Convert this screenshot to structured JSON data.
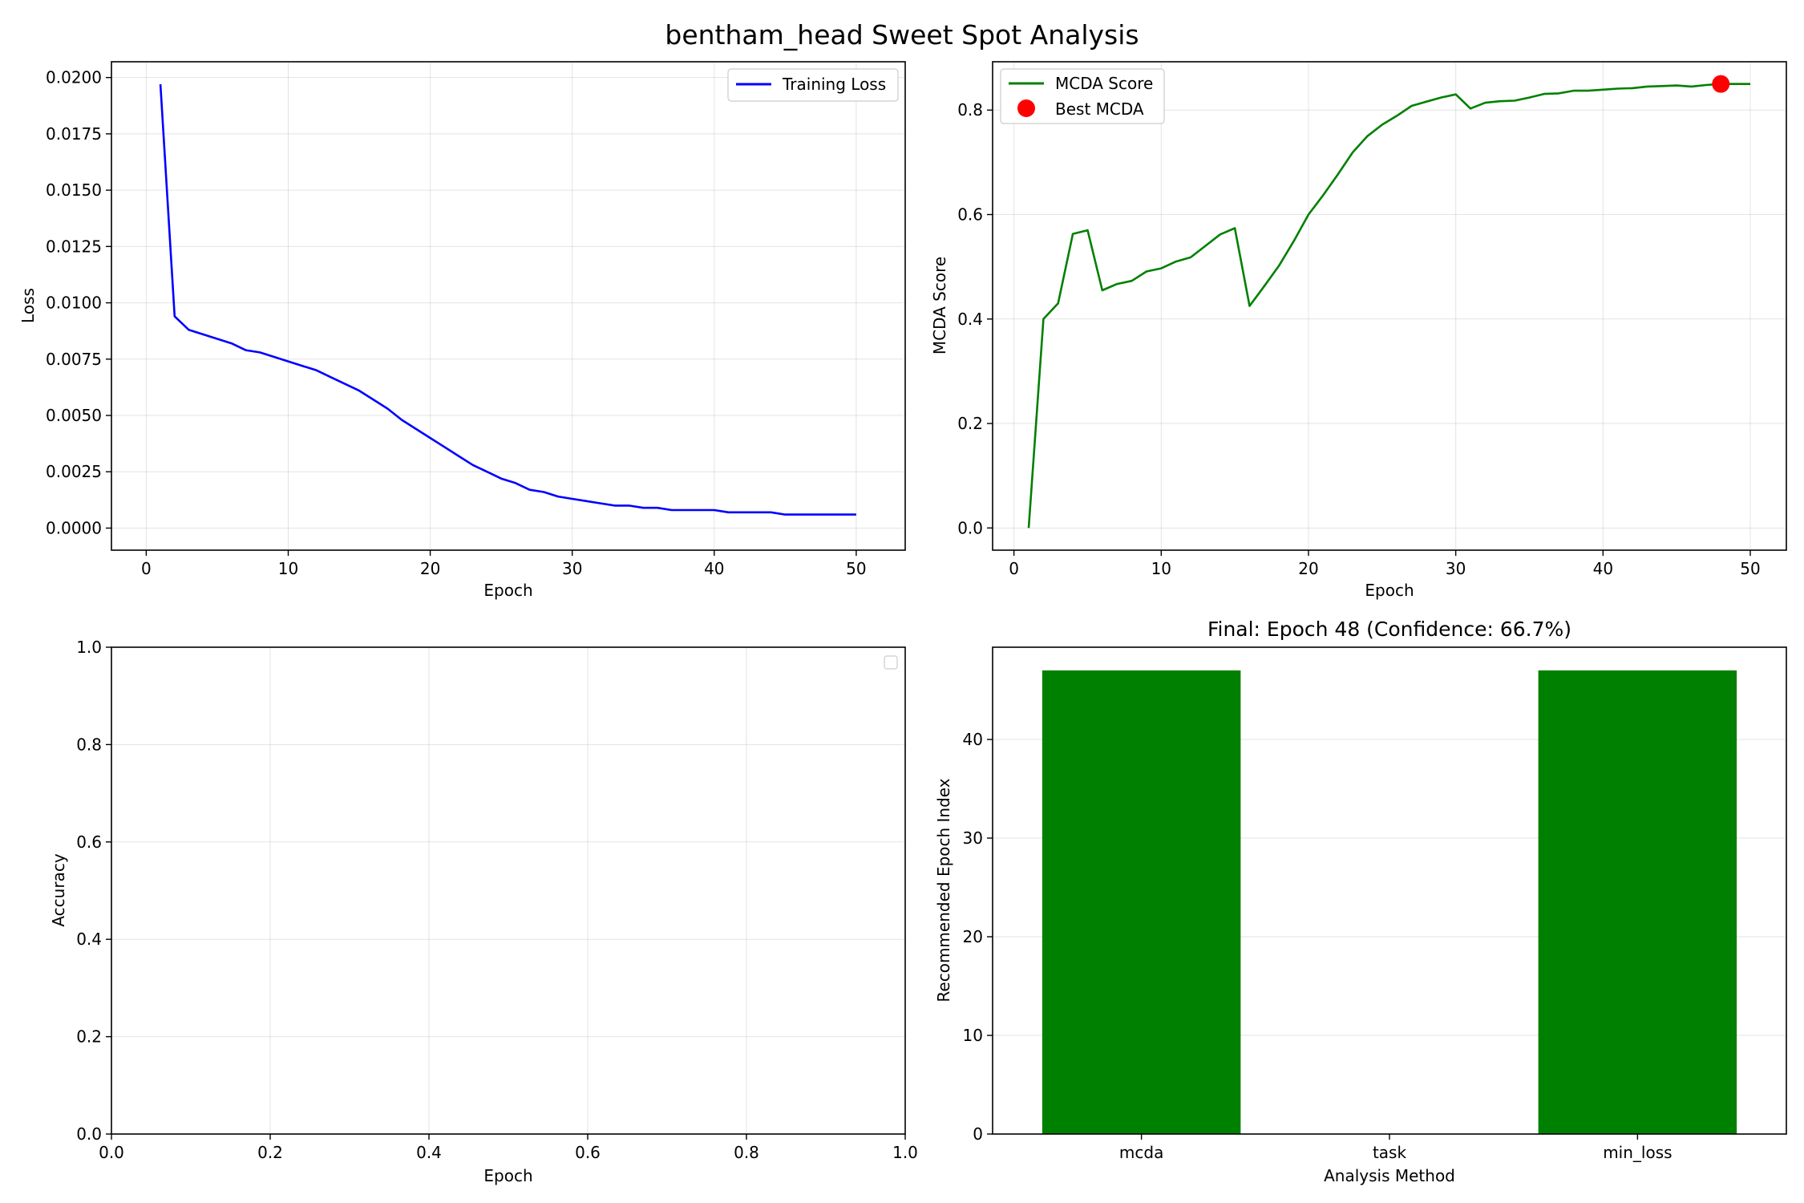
{
  "suptitle": "bentham_head Sweet Spot Analysis",
  "chart_data": [
    {
      "type": "line",
      "xlabel": "Epoch",
      "ylabel": "Loss",
      "xlim": [
        -2.45,
        53.45
      ],
      "ylim": [
        -0.00098,
        0.0207
      ],
      "xticks": [
        0,
        10,
        20,
        30,
        40,
        50
      ],
      "yticks": [
        "0.0000",
        "0.0025",
        "0.0050",
        "0.0075",
        "0.0100",
        "0.0125",
        "0.0150",
        "0.0175",
        "0.0200"
      ],
      "grid": true,
      "legend": "top-right",
      "series": [
        {
          "name": "Training Loss",
          "color": "#0000ff",
          "x": [
            1,
            2,
            3,
            4,
            5,
            6,
            7,
            8,
            9,
            10,
            11,
            12,
            13,
            14,
            15,
            16,
            17,
            18,
            19,
            20,
            21,
            22,
            23,
            24,
            25,
            26,
            27,
            28,
            29,
            30,
            31,
            32,
            33,
            34,
            35,
            36,
            37,
            38,
            39,
            40,
            41,
            42,
            43,
            44,
            45,
            46,
            47,
            48,
            49,
            50
          ],
          "y": [
            0.0197,
            0.0094,
            0.0088,
            0.0086,
            0.0084,
            0.0082,
            0.0079,
            0.0078,
            0.0076,
            0.0074,
            0.0072,
            0.007,
            0.0067,
            0.0064,
            0.0061,
            0.0057,
            0.0053,
            0.0048,
            0.0044,
            0.004,
            0.0036,
            0.0032,
            0.0028,
            0.0025,
            0.0022,
            0.002,
            0.0017,
            0.0016,
            0.0014,
            0.0013,
            0.0012,
            0.0011,
            0.001,
            0.001,
            0.0009,
            0.0009,
            0.0008,
            0.0008,
            0.0008,
            0.0008,
            0.0007,
            0.0007,
            0.0007,
            0.0007,
            0.0006,
            0.0006,
            0.0006,
            0.0006,
            0.0006,
            0.0006
          ]
        }
      ]
    },
    {
      "type": "line",
      "xlabel": "Epoch",
      "ylabel": "MCDA Score",
      "xlim": [
        -1.45,
        52.45
      ],
      "ylim": [
        -0.0425,
        0.8925
      ],
      "xticks": [
        0,
        10,
        20,
        30,
        40,
        50
      ],
      "yticks": [
        "0.0",
        "0.2",
        "0.4",
        "0.6",
        "0.8"
      ],
      "grid": true,
      "legend": "top-left",
      "series": [
        {
          "name": "MCDA Score",
          "color": "#008000",
          "x": [
            1,
            2,
            3,
            4,
            5,
            6,
            7,
            8,
            9,
            10,
            11,
            12,
            13,
            14,
            15,
            16,
            17,
            18,
            19,
            20,
            21,
            22,
            23,
            24,
            25,
            26,
            27,
            28,
            29,
            30,
            31,
            32,
            33,
            34,
            35,
            36,
            37,
            38,
            39,
            40,
            41,
            42,
            43,
            44,
            45,
            46,
            47,
            48,
            49,
            50
          ],
          "y": [
            0.0,
            0.4,
            0.43,
            0.563,
            0.57,
            0.455,
            0.467,
            0.473,
            0.491,
            0.497,
            0.51,
            0.518,
            0.54,
            0.562,
            0.574,
            0.425,
            0.463,
            0.502,
            0.549,
            0.6,
            0.637,
            0.677,
            0.719,
            0.75,
            0.772,
            0.789,
            0.808,
            0.816,
            0.824,
            0.83,
            0.803,
            0.814,
            0.817,
            0.818,
            0.824,
            0.831,
            0.832,
            0.837,
            0.837,
            0.839,
            0.841,
            0.842,
            0.845,
            0.846,
            0.847,
            0.845,
            0.848,
            0.85,
            0.85,
            0.85
          ]
        }
      ],
      "highlight": {
        "name": "Best MCDA",
        "x": 48,
        "y": 0.85,
        "color": "#ff0000"
      }
    },
    {
      "type": "line",
      "xlabel": "Epoch",
      "ylabel": "Accuracy",
      "xlim": [
        0,
        1
      ],
      "ylim": [
        0,
        1
      ],
      "xticks": [
        "0.0",
        "0.2",
        "0.4",
        "0.6",
        "0.8",
        "1.0"
      ],
      "yticks": [
        "0.0",
        "0.2",
        "0.4",
        "0.6",
        "0.8",
        "1.0"
      ],
      "grid": true,
      "legend": "top-right",
      "series": []
    },
    {
      "type": "bar",
      "title": "Final: Epoch 48 (Confidence: 66.7%)",
      "xlabel": "Analysis Method",
      "ylabel": "Recommended Epoch Index",
      "categories": [
        "mcda",
        "task",
        "min_loss"
      ],
      "values": [
        47,
        0,
        47
      ],
      "color": "#008000",
      "ylim": [
        0,
        49.35
      ],
      "yticks": [
        "0",
        "10",
        "20",
        "30",
        "40"
      ],
      "grid": true
    }
  ]
}
